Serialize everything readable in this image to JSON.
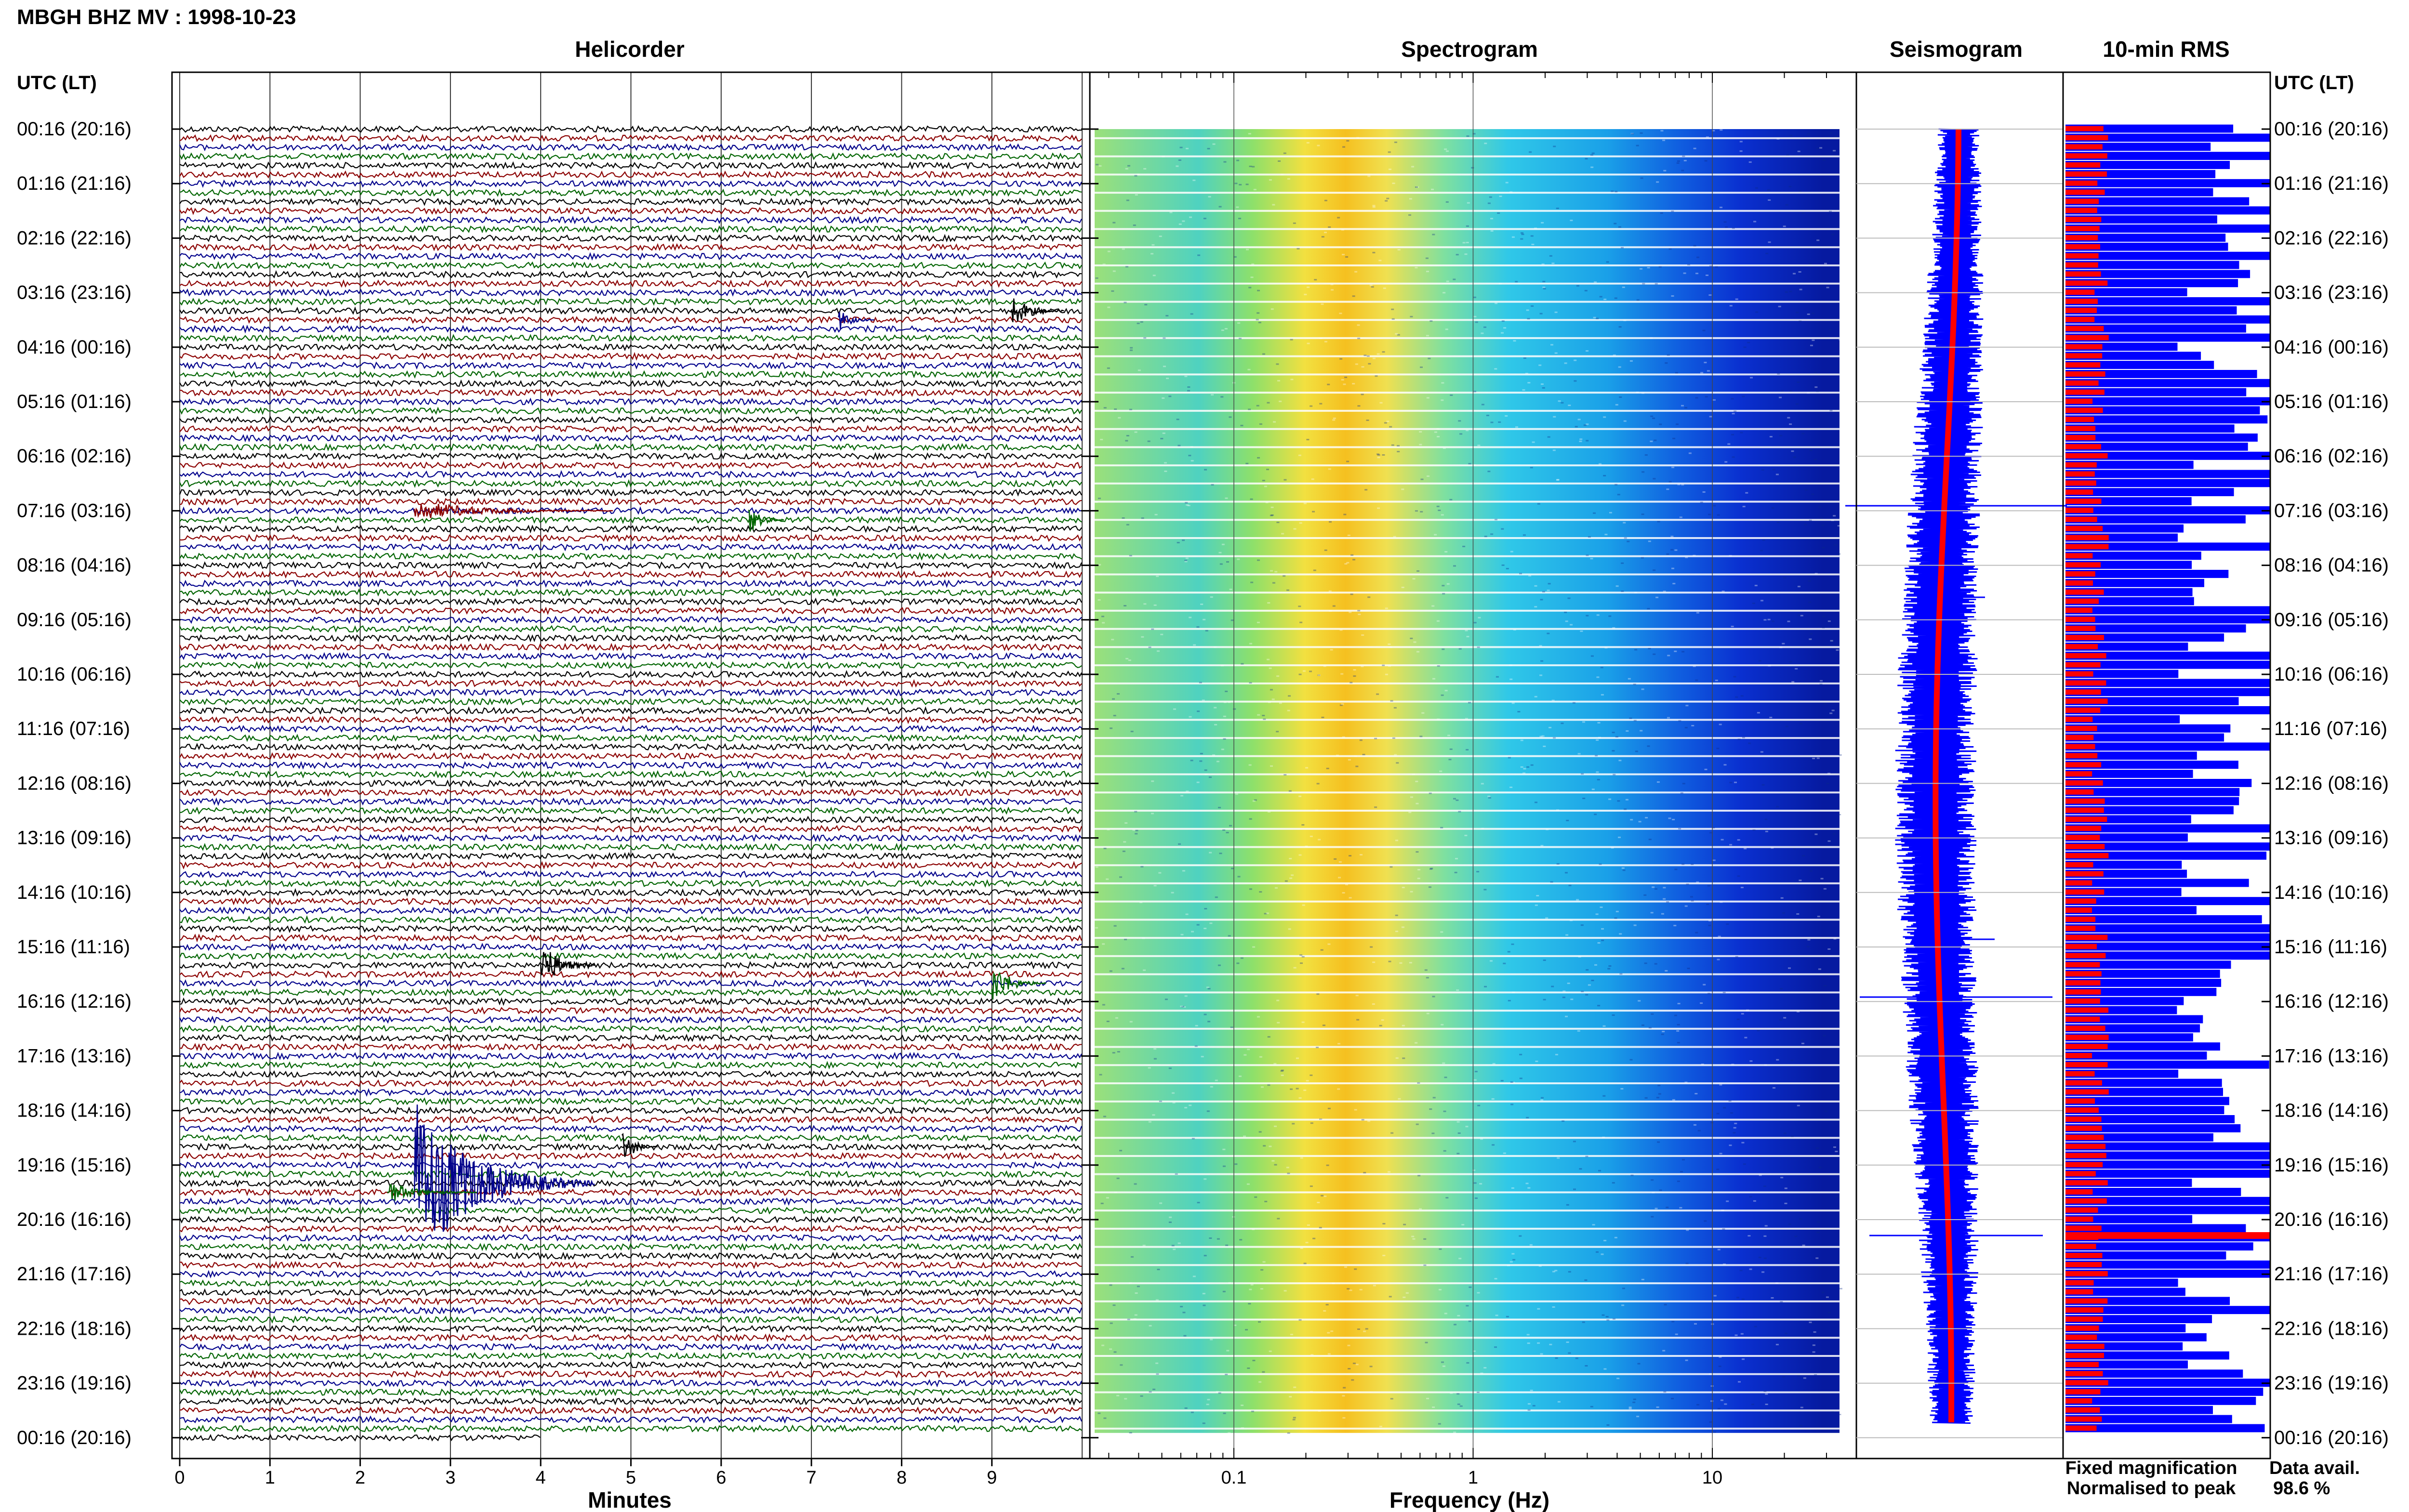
{
  "title": "MBGH BHZ MV : 1998-10-23",
  "panels": {
    "helicorder": "Helicorder",
    "spectrogram": "Spectrogram",
    "seismogram": "Seismogram",
    "rms": "10-min RMS"
  },
  "axis_header_left": "UTC (LT)",
  "axis_header_right": "UTC (LT)",
  "legend": {
    "fixed": "Fixed magnification",
    "normalised": "Normalised to peak",
    "fixed_color": "#1a1aff",
    "normalised_color": "#ff1a1a"
  },
  "availability": {
    "label": "Data avail.",
    "value": "98.6 %"
  },
  "colors": {
    "helicorder_traces": [
      "#000000",
      "#8b0000",
      "#00008b",
      "#006400"
    ],
    "blue": "#0000ff",
    "red": "#ff0000"
  },
  "chart_data": [
    {
      "type": "line",
      "panel": "Helicorder",
      "xlabel": "Minutes",
      "x_ticks": [
        "0",
        "1",
        "2",
        "3",
        "4",
        "5",
        "6",
        "7",
        "8",
        "9"
      ],
      "xlim": [
        0,
        10
      ],
      "y_ticks": [
        "00:16 (20:16)",
        "01:16 (21:16)",
        "02:16 (22:16)",
        "03:16 (23:16)",
        "04:16 (00:16)",
        "05:16 (01:16)",
        "06:16 (02:16)",
        "07:16 (03:16)",
        "08:16 (04:16)",
        "09:16 (05:16)",
        "10:16 (06:16)",
        "11:16 (07:16)",
        "12:16 (08:16)",
        "13:16 (09:16)",
        "14:16 (10:16)",
        "15:16 (11:16)",
        "16:16 (12:16)",
        "17:16 (13:16)",
        "18:16 (14:16)",
        "19:16 (15:16)",
        "20:16 (16:16)",
        "21:16 (17:16)",
        "22:16 (18:16)",
        "23:16 (19:16)",
        "00:16 (20:16)"
      ],
      "rows_per_hour": 6
    },
    {
      "type": "heatmap",
      "panel": "Spectrogram",
      "xlabel": "Frequency (Hz)",
      "x_scale": "log",
      "x_ticks": [
        "0.1",
        "1",
        "10"
      ],
      "xlim": [
        0.025,
        40
      ]
    },
    {
      "type": "line",
      "panel": "Seismogram",
      "series": [
        {
          "name": "Fixed magnification",
          "values": []
        },
        {
          "name": "Normalised to peak",
          "values": []
        }
      ]
    },
    {
      "type": "bar",
      "panel": "10-min RMS",
      "orientation": "horizontal"
    }
  ]
}
